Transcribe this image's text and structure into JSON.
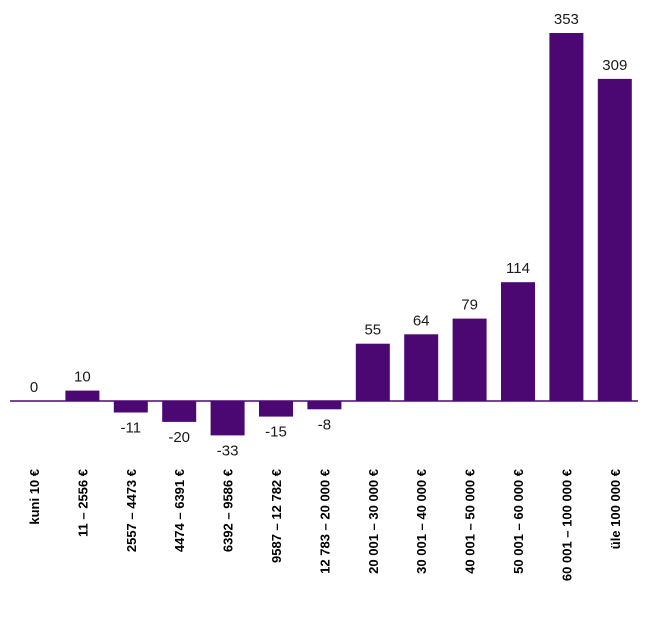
{
  "chart_data": {
    "type": "bar",
    "categories": [
      "kuni 10 €",
      "11 – 2556 €",
      "2557 – 4473 €",
      "4474 – 6391 €",
      "6392 – 9586 €",
      "9587 – 12 782 €",
      "12 783 – 20 000 €",
      "20 001 – 30 000 €",
      "30 001 – 40 000 €",
      "40 001 – 50 000 €",
      "50 001 – 60 000 €",
      "60 001 – 100 000 €",
      "üle 100 000 €"
    ],
    "values": [
      0,
      10,
      -11,
      -20,
      -33,
      -15,
      -8,
      55,
      64,
      79,
      114,
      353,
      309
    ],
    "data_labels": [
      "0",
      "10",
      "-11",
      "-20",
      "-33",
      "-15",
      "-8",
      "55",
      "64",
      "79",
      "114",
      "353",
      "309"
    ],
    "title": "",
    "xlabel": "",
    "ylabel": "",
    "ylim": [
      -40,
      370
    ],
    "bar_color": "#4b0872",
    "axis_color": "#4b0872",
    "grid": false,
    "legend": "none"
  }
}
